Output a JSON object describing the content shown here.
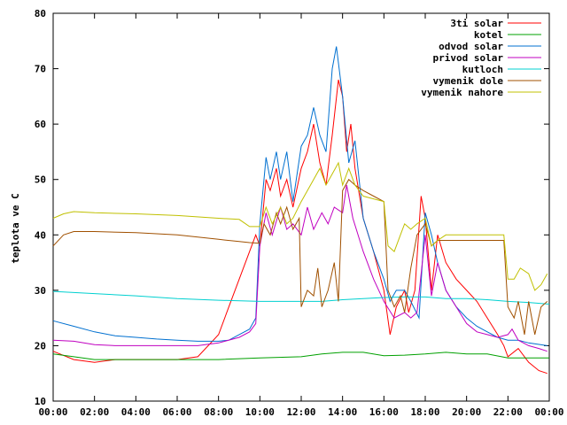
{
  "chart_data": {
    "type": "line",
    "title": "",
    "xlabel": "",
    "ylabel": "teplota ve C",
    "xlim": [
      0,
      24
    ],
    "ylim": [
      10,
      80
    ],
    "x_ticks": [
      {
        "v": 0,
        "label": "00:00"
      },
      {
        "v": 2,
        "label": "02:00"
      },
      {
        "v": 4,
        "label": "04:00"
      },
      {
        "v": 6,
        "label": "06:00"
      },
      {
        "v": 8,
        "label": "08:00"
      },
      {
        "v": 10,
        "label": "10:00"
      },
      {
        "v": 12,
        "label": "12:00"
      },
      {
        "v": 14,
        "label": "14:00"
      },
      {
        "v": 16,
        "label": "16:00"
      },
      {
        "v": 18,
        "label": "18:00"
      },
      {
        "v": 20,
        "label": "20:00"
      },
      {
        "v": 22,
        "label": "22:00"
      },
      {
        "v": 24,
        "label": "00:00"
      }
    ],
    "y_ticks": [
      {
        "v": 10,
        "label": "10"
      },
      {
        "v": 20,
        "label": "20"
      },
      {
        "v": 30,
        "label": "30"
      },
      {
        "v": 40,
        "label": "40"
      },
      {
        "v": 50,
        "label": "50"
      },
      {
        "v": 60,
        "label": "60"
      },
      {
        "v": 70,
        "label": "70"
      },
      {
        "v": 80,
        "label": "80"
      }
    ],
    "grid": false,
    "legend_position": "top-right",
    "series": [
      {
        "name": "3ti solar",
        "color": "#ff0000",
        "points": [
          [
            0,
            19
          ],
          [
            1,
            17.5
          ],
          [
            2,
            17
          ],
          [
            3,
            17.5
          ],
          [
            4,
            17.5
          ],
          [
            5,
            17.5
          ],
          [
            6,
            17.5
          ],
          [
            7,
            18
          ],
          [
            8,
            22
          ],
          [
            8.5,
            27
          ],
          [
            9,
            32
          ],
          [
            9.5,
            37
          ],
          [
            9.8,
            40
          ],
          [
            10,
            38
          ],
          [
            10.3,
            50
          ],
          [
            10.5,
            48
          ],
          [
            10.8,
            52
          ],
          [
            11,
            47
          ],
          [
            11.3,
            50
          ],
          [
            11.6,
            45
          ],
          [
            12,
            52
          ],
          [
            12.3,
            55
          ],
          [
            12.6,
            60
          ],
          [
            12.9,
            53
          ],
          [
            13.2,
            49
          ],
          [
            13.5,
            58
          ],
          [
            13.8,
            68
          ],
          [
            14,
            65
          ],
          [
            14.2,
            55
          ],
          [
            14.4,
            60
          ],
          [
            14.6,
            52
          ],
          [
            15,
            43
          ],
          [
            15.5,
            37
          ],
          [
            16,
            30
          ],
          [
            16.3,
            22
          ],
          [
            16.6,
            27
          ],
          [
            17,
            30
          ],
          [
            17.2,
            26
          ],
          [
            17.5,
            30
          ],
          [
            17.8,
            47
          ],
          [
            18,
            43
          ],
          [
            18.3,
            30
          ],
          [
            18.6,
            40
          ],
          [
            19,
            35
          ],
          [
            19.5,
            32
          ],
          [
            20,
            30
          ],
          [
            20.5,
            28
          ],
          [
            21,
            25
          ],
          [
            21.5,
            22
          ],
          [
            21.8,
            20
          ],
          [
            22,
            18
          ],
          [
            22.5,
            19.5
          ],
          [
            23,
            17
          ],
          [
            23.5,
            15.5
          ],
          [
            23.9,
            15
          ]
        ]
      },
      {
        "name": "kotel",
        "color": "#00a000",
        "points": [
          [
            0,
            18.5
          ],
          [
            1,
            18
          ],
          [
            2,
            17.5
          ],
          [
            3,
            17.5
          ],
          [
            4,
            17.5
          ],
          [
            6,
            17.5
          ],
          [
            8,
            17.5
          ],
          [
            10,
            17.8
          ],
          [
            12,
            18
          ],
          [
            13,
            18.5
          ],
          [
            14,
            18.8
          ],
          [
            15,
            18.8
          ],
          [
            16,
            18.2
          ],
          [
            17,
            18.3
          ],
          [
            18,
            18.5
          ],
          [
            19,
            18.8
          ],
          [
            20,
            18.5
          ],
          [
            21,
            18.5
          ],
          [
            22,
            17.8
          ],
          [
            23,
            17.8
          ],
          [
            24,
            17.8
          ]
        ]
      },
      {
        "name": "odvod solar",
        "color": "#0070d0",
        "points": [
          [
            0,
            24.5
          ],
          [
            1,
            23.5
          ],
          [
            2,
            22.5
          ],
          [
            3,
            21.8
          ],
          [
            4,
            21.5
          ],
          [
            5,
            21.2
          ],
          [
            6,
            21
          ],
          [
            7,
            20.8
          ],
          [
            8,
            20.8
          ],
          [
            8.5,
            21
          ],
          [
            9,
            22
          ],
          [
            9.5,
            23
          ],
          [
            9.8,
            25
          ],
          [
            10,
            42
          ],
          [
            10.3,
            54
          ],
          [
            10.5,
            50
          ],
          [
            10.8,
            55
          ],
          [
            11,
            50
          ],
          [
            11.3,
            55
          ],
          [
            11.6,
            46
          ],
          [
            12,
            56
          ],
          [
            12.3,
            58
          ],
          [
            12.6,
            63
          ],
          [
            12.9,
            58
          ],
          [
            13.2,
            55
          ],
          [
            13.5,
            70
          ],
          [
            13.7,
            74
          ],
          [
            14,
            65
          ],
          [
            14.3,
            53
          ],
          [
            14.6,
            57
          ],
          [
            15,
            43
          ],
          [
            15.5,
            37
          ],
          [
            16,
            32
          ],
          [
            16.3,
            28
          ],
          [
            16.6,
            30
          ],
          [
            17,
            30
          ],
          [
            17.3,
            28
          ],
          [
            17.7,
            25
          ],
          [
            18,
            44
          ],
          [
            18.3,
            40
          ],
          [
            18.6,
            35
          ],
          [
            19,
            30
          ],
          [
            19.5,
            27
          ],
          [
            20,
            25
          ],
          [
            20.5,
            23.5
          ],
          [
            21,
            22.5
          ],
          [
            21.5,
            21.5
          ],
          [
            22,
            21
          ],
          [
            22.5,
            21
          ],
          [
            23,
            20.5
          ],
          [
            23.9,
            20
          ]
        ]
      },
      {
        "name": "privod solar",
        "color": "#c000c0",
        "points": [
          [
            0,
            21
          ],
          [
            1,
            20.8
          ],
          [
            2,
            20.2
          ],
          [
            3,
            20
          ],
          [
            4,
            20
          ],
          [
            5,
            20
          ],
          [
            6,
            20
          ],
          [
            7,
            20
          ],
          [
            8,
            20.5
          ],
          [
            9,
            21.5
          ],
          [
            9.5,
            22.5
          ],
          [
            9.8,
            24
          ],
          [
            10,
            38
          ],
          [
            10.3,
            44
          ],
          [
            10.6,
            40
          ],
          [
            11,
            45
          ],
          [
            11.3,
            41
          ],
          [
            11.6,
            42
          ],
          [
            12,
            40
          ],
          [
            12.3,
            45
          ],
          [
            12.6,
            41
          ],
          [
            13,
            44
          ],
          [
            13.3,
            42
          ],
          [
            13.6,
            45
          ],
          [
            14,
            44
          ],
          [
            14.2,
            49
          ],
          [
            14.5,
            43
          ],
          [
            15,
            37
          ],
          [
            15.5,
            32
          ],
          [
            16,
            28
          ],
          [
            16.5,
            25
          ],
          [
            17,
            26
          ],
          [
            17.3,
            25
          ],
          [
            17.6,
            26
          ],
          [
            18,
            40
          ],
          [
            18.3,
            29
          ],
          [
            18.6,
            35
          ],
          [
            19,
            30
          ],
          [
            19.5,
            27
          ],
          [
            20,
            24
          ],
          [
            20.5,
            22.5
          ],
          [
            21,
            22
          ],
          [
            21.5,
            21.5
          ],
          [
            22,
            22
          ],
          [
            22.2,
            23
          ],
          [
            22.5,
            21
          ],
          [
            23,
            20
          ],
          [
            23.5,
            19.5
          ],
          [
            23.9,
            19
          ]
        ]
      },
      {
        "name": "kutloch",
        "color": "#00d0d0",
        "points": [
          [
            0,
            29.8
          ],
          [
            2,
            29.4
          ],
          [
            4,
            29
          ],
          [
            6,
            28.5
          ],
          [
            8,
            28.2
          ],
          [
            10,
            28
          ],
          [
            12,
            28
          ],
          [
            13,
            28
          ],
          [
            14,
            28.3
          ],
          [
            15,
            28.5
          ],
          [
            16,
            28.7
          ],
          [
            17,
            28.8
          ],
          [
            18,
            28.8
          ],
          [
            19,
            28.5
          ],
          [
            20,
            28.5
          ],
          [
            21,
            28.3
          ],
          [
            22,
            28
          ],
          [
            23,
            27.8
          ],
          [
            24,
            27.5
          ]
        ]
      },
      {
        "name": "vymenik dole",
        "color": "#a05000",
        "points": [
          [
            0,
            38
          ],
          [
            0.5,
            40
          ],
          [
            1,
            40.6
          ],
          [
            2,
            40.6
          ],
          [
            4,
            40.4
          ],
          [
            6,
            40
          ],
          [
            8,
            39.2
          ],
          [
            9,
            38.8
          ],
          [
            9.5,
            38.6
          ],
          [
            10,
            38.5
          ],
          [
            10.2,
            42
          ],
          [
            10.5,
            40
          ],
          [
            10.8,
            44
          ],
          [
            11,
            42
          ],
          [
            11.3,
            45
          ],
          [
            11.6,
            41
          ],
          [
            11.9,
            43
          ],
          [
            12,
            27
          ],
          [
            12.3,
            30
          ],
          [
            12.6,
            29
          ],
          [
            12.8,
            34
          ],
          [
            13,
            27
          ],
          [
            13.3,
            30
          ],
          [
            13.6,
            35
          ],
          [
            13.8,
            28
          ],
          [
            14,
            48
          ],
          [
            14.3,
            50
          ],
          [
            14.6,
            49
          ],
          [
            15,
            48
          ],
          [
            15.5,
            47
          ],
          [
            16,
            46
          ],
          [
            16.2,
            30
          ],
          [
            16.5,
            27
          ],
          [
            16.8,
            29
          ],
          [
            17,
            26
          ],
          [
            17.3,
            34
          ],
          [
            17.6,
            40
          ],
          [
            18,
            42
          ],
          [
            18.3,
            38
          ],
          [
            18.6,
            39
          ],
          [
            19,
            39
          ],
          [
            19.5,
            39
          ],
          [
            20,
            39
          ],
          [
            20.5,
            39
          ],
          [
            21,
            39
          ],
          [
            21.5,
            39
          ],
          [
            21.8,
            39
          ],
          [
            22,
            27
          ],
          [
            22.3,
            25
          ],
          [
            22.5,
            28
          ],
          [
            22.8,
            22
          ],
          [
            23,
            28
          ],
          [
            23.3,
            22
          ],
          [
            23.6,
            27
          ],
          [
            23.9,
            28
          ]
        ]
      },
      {
        "name": "vymenik nahore",
        "color": "#c0c000",
        "points": [
          [
            0,
            43
          ],
          [
            0.5,
            43.8
          ],
          [
            1,
            44.2
          ],
          [
            2,
            44
          ],
          [
            4,
            43.8
          ],
          [
            6,
            43.5
          ],
          [
            8,
            43
          ],
          [
            9,
            42.8
          ],
          [
            9.5,
            41.5
          ],
          [
            10,
            41.5
          ],
          [
            10.3,
            45
          ],
          [
            10.6,
            42
          ],
          [
            11,
            45
          ],
          [
            11.3,
            42
          ],
          [
            11.6,
            43
          ],
          [
            12,
            46
          ],
          [
            12.3,
            48
          ],
          [
            12.6,
            50
          ],
          [
            12.9,
            52
          ],
          [
            13.2,
            49
          ],
          [
            13.5,
            51
          ],
          [
            13.8,
            53
          ],
          [
            14,
            49
          ],
          [
            14.3,
            52
          ],
          [
            14.6,
            49
          ],
          [
            15,
            47
          ],
          [
            15.5,
            46.5
          ],
          [
            16,
            46
          ],
          [
            16.2,
            38
          ],
          [
            16.5,
            37
          ],
          [
            16.8,
            40
          ],
          [
            17,
            42
          ],
          [
            17.3,
            41
          ],
          [
            17.6,
            42
          ],
          [
            18,
            43
          ],
          [
            18.3,
            38
          ],
          [
            18.6,
            39
          ],
          [
            19,
            40
          ],
          [
            19.5,
            40
          ],
          [
            20,
            40
          ],
          [
            20.5,
            40
          ],
          [
            21,
            40
          ],
          [
            21.5,
            40
          ],
          [
            21.8,
            40
          ],
          [
            22,
            32
          ],
          [
            22.3,
            32
          ],
          [
            22.6,
            34
          ],
          [
            23,
            33
          ],
          [
            23.3,
            30
          ],
          [
            23.6,
            31
          ],
          [
            23.9,
            33
          ]
        ]
      }
    ]
  }
}
